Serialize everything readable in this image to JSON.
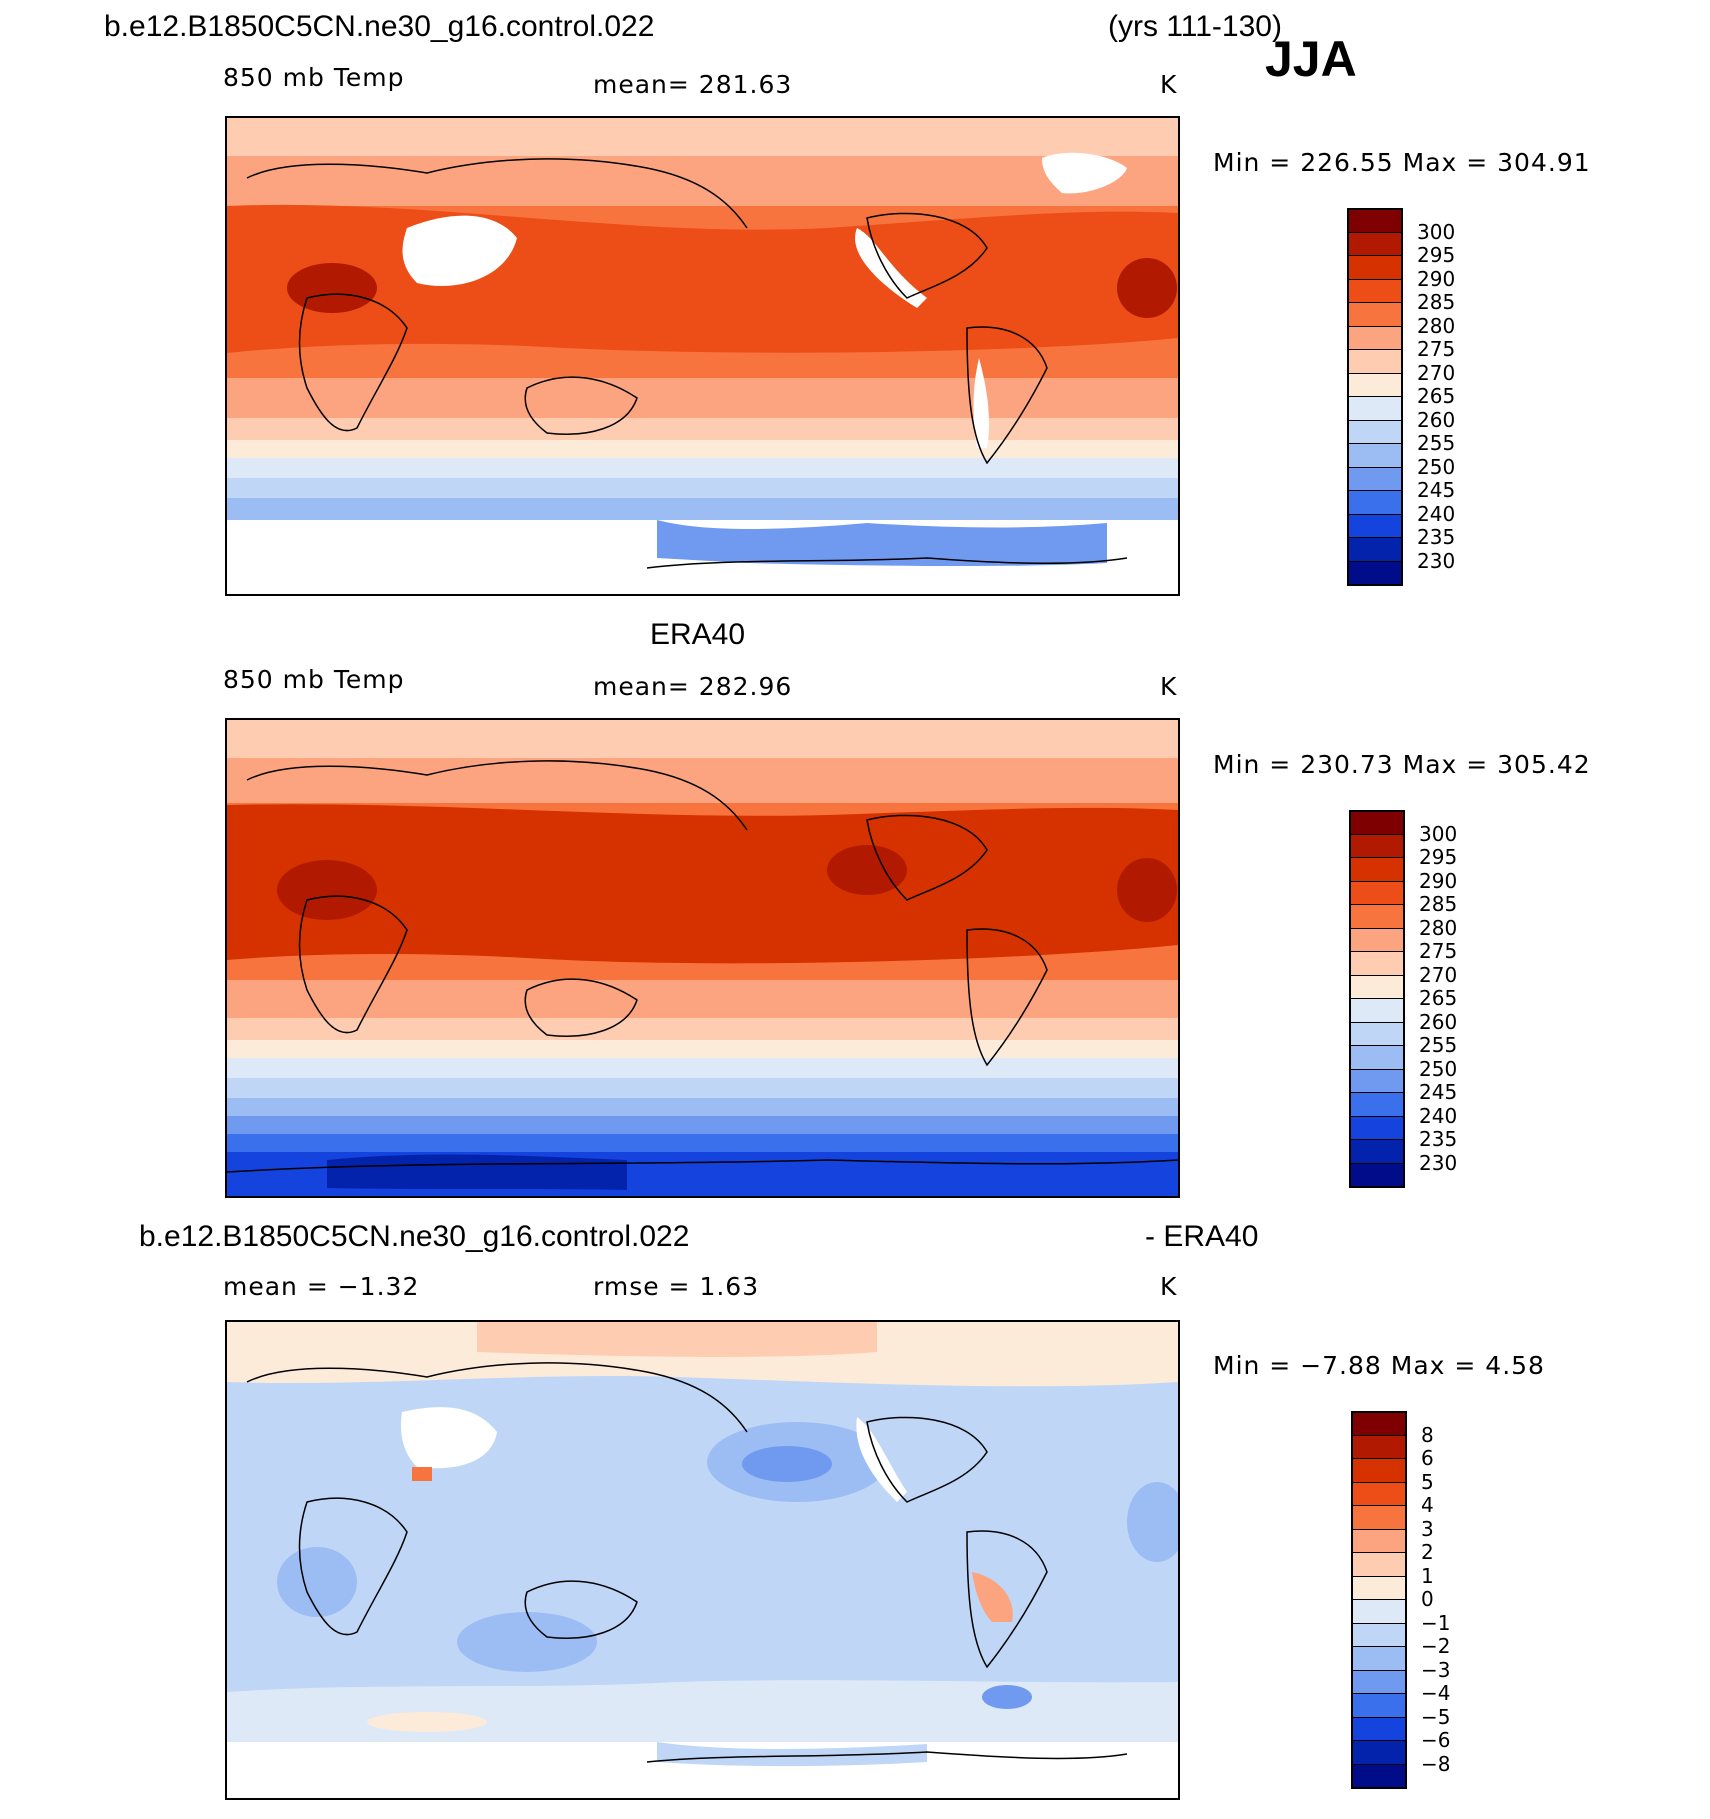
{
  "figure": {
    "case_title": "b.e12.B1850C5CN.ne30_g16.control.022",
    "years": "(yrs 111-130)",
    "season": "JJA"
  },
  "panels": [
    {
      "id": "model",
      "variable": "850 mb Temp",
      "stat": "mean=  281.63",
      "units": "K",
      "minmax": "Min  =  226.55  Max  =  304.91",
      "palette": "temp"
    },
    {
      "id": "obs",
      "heading": "ERA40",
      "variable": "850 mb Temp",
      "stat": "mean=  282.96",
      "units": "K",
      "minmax": "Min  =  230.73  Max  =  305.42",
      "palette": "temp"
    },
    {
      "id": "diff",
      "heading_left": "b.e12.B1850C5CN.ne30_g16.control.022",
      "heading_right": "- ERA40",
      "stat_mean": "mean  =    −1.32",
      "stat_rmse": "rmse  =     1.63",
      "units": "K",
      "minmax": "Min  =    −7.88  Max  =      4.58",
      "palette": "diff"
    }
  ],
  "colorbars": {
    "temp": {
      "labels": [
        "300",
        "295",
        "290",
        "285",
        "280",
        "275",
        "270",
        "265",
        "260",
        "255",
        "250",
        "245",
        "240",
        "235",
        "230"
      ],
      "colors": [
        "#7f0000",
        "#b11a00",
        "#d63200",
        "#ed4d16",
        "#f7743f",
        "#fba47f",
        "#fdccb1",
        "#fdebda",
        "#dde9f7",
        "#bfd6f6",
        "#9cbcf4",
        "#6f9af0",
        "#3a70ec",
        "#1543de",
        "#0423ad",
        "#000c8a"
      ]
    },
    "diff": {
      "labels": [
        "8",
        "6",
        "5",
        "4",
        "3",
        "2",
        "1",
        "0",
        "−1",
        "−2",
        "−3",
        "−4",
        "−5",
        "−6",
        "−8"
      ],
      "colors": [
        "#7f0000",
        "#b11a00",
        "#d63200",
        "#ed4d16",
        "#f7743f",
        "#fba47f",
        "#fdccb1",
        "#fdebda",
        "#dde9f7",
        "#bfd6f6",
        "#9cbcf4",
        "#6f9af0",
        "#3a70ec",
        "#1543de",
        "#0423ad",
        "#000c8a"
      ]
    }
  }
}
